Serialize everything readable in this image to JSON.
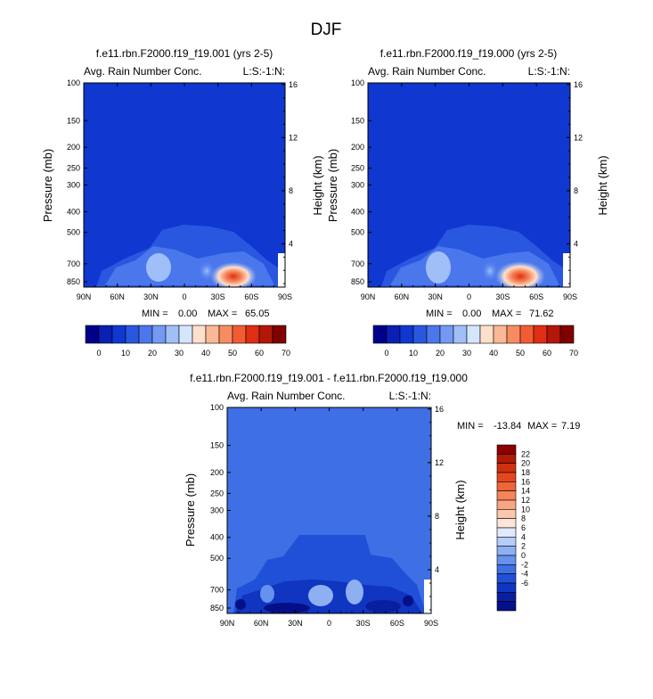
{
  "page_title": "DJF",
  "chart_data": [
    {
      "type": "heatmap",
      "title": "f.e11.rbn.F2000.f19_f19.001 (yrs 2-5)",
      "subtitle_left": "Avg. Rain Number Conc.",
      "subtitle_right": "L:S:-1:N:",
      "ylabel": "Pressure (mb)",
      "ylabel_right": "Height (km)",
      "x_ticks": [
        "90N",
        "60N",
        "30N",
        "0",
        "30S",
        "60S",
        "90S"
      ],
      "y_ticks": [
        "100",
        "150",
        "200",
        "250",
        "300",
        "400",
        "500",
        "700",
        "850"
      ],
      "y_ticks_right": [
        "16",
        "12",
        "8",
        "4"
      ],
      "stats": {
        "min_label": "MIN =",
        "min": "0.00",
        "max_label": "MAX =",
        "max": "65.05"
      },
      "peak": {
        "lat": -38,
        "pressure": 850,
        "value": 65.05
      },
      "colorbar": {
        "orientation": "horizontal",
        "labels": [
          "0",
          "10",
          "20",
          "30",
          "40",
          "50",
          "60",
          "70"
        ],
        "colors": [
          "#00008b",
          "#0a1fb5",
          "#1037d0",
          "#2a57e0",
          "#4a77ec",
          "#7399f3",
          "#a0bff9",
          "#d5e6fc",
          "#fde0cc",
          "#fbb896",
          "#f88c60",
          "#f25c34",
          "#e02d14",
          "#b5160a",
          "#800000"
        ]
      }
    },
    {
      "type": "heatmap",
      "title": "f.e11.rbn.F2000.f19_f19.000 (yrs 2-5)",
      "subtitle_left": "Avg. Rain Number Conc.",
      "subtitle_right": "L:S:-1:N:",
      "ylabel": "Pressure (mb)",
      "ylabel_right": "Height (km)",
      "x_ticks": [
        "90N",
        "60N",
        "30N",
        "0",
        "30S",
        "60S",
        "90S"
      ],
      "y_ticks": [
        "100",
        "150",
        "200",
        "250",
        "300",
        "400",
        "500",
        "700",
        "850"
      ],
      "y_ticks_right": [
        "16",
        "12",
        "8",
        "4"
      ],
      "stats": {
        "min_label": "MIN =",
        "min": "0.00",
        "max_label": "MAX =",
        "max": "71.62"
      },
      "peak": {
        "lat": -38,
        "pressure": 850,
        "value": 71.62
      },
      "colorbar": {
        "orientation": "horizontal",
        "labels": [
          "0",
          "10",
          "20",
          "30",
          "40",
          "50",
          "60",
          "70"
        ],
        "colors": [
          "#00008b",
          "#0a1fb5",
          "#1037d0",
          "#2a57e0",
          "#4a77ec",
          "#7399f3",
          "#a0bff9",
          "#d5e6fc",
          "#fde0cc",
          "#fbb896",
          "#f88c60",
          "#f25c34",
          "#e02d14",
          "#b5160a",
          "#800000"
        ]
      }
    },
    {
      "type": "heatmap",
      "title": "f.e11.rbn.F2000.f19_f19.001 - f.e11.rbn.F2000.f19_f19.000",
      "subtitle_left": "Avg. Rain Number Conc.",
      "subtitle_right": "L:S:-1:N:",
      "ylabel": "Pressure (mb)",
      "ylabel_right": "Height (km)",
      "x_ticks": [
        "90N",
        "60N",
        "30N",
        "0",
        "30S",
        "60S",
        "90S"
      ],
      "y_ticks": [
        "100",
        "150",
        "200",
        "250",
        "300",
        "400",
        "500",
        "700",
        "850"
      ],
      "y_ticks_right": [
        "16",
        "12",
        "8",
        "4"
      ],
      "stats": {
        "min_label": "MIN =",
        "min": "-13.84",
        "max_label": "MAX =",
        "max": "7.19"
      },
      "colorbar": {
        "orientation": "vertical",
        "labels": [
          "22",
          "20",
          "18",
          "16",
          "14",
          "12",
          "10",
          "8",
          "6",
          "4",
          "2",
          "0",
          "-2",
          "-4",
          "-6"
        ],
        "colors_top_to_bottom": [
          "#8b0000",
          "#b01a06",
          "#d0300f",
          "#e5461e",
          "#f0643a",
          "#f5845a",
          "#f8a580",
          "#fbc8ac",
          "#fde6d9",
          "#dfeafc",
          "#b6cdf7",
          "#8eb0f2",
          "#6691ec",
          "#3f6fe4",
          "#2050d8",
          "#1035c0",
          "#0a1fa0",
          "#050f88"
        ]
      }
    }
  ]
}
